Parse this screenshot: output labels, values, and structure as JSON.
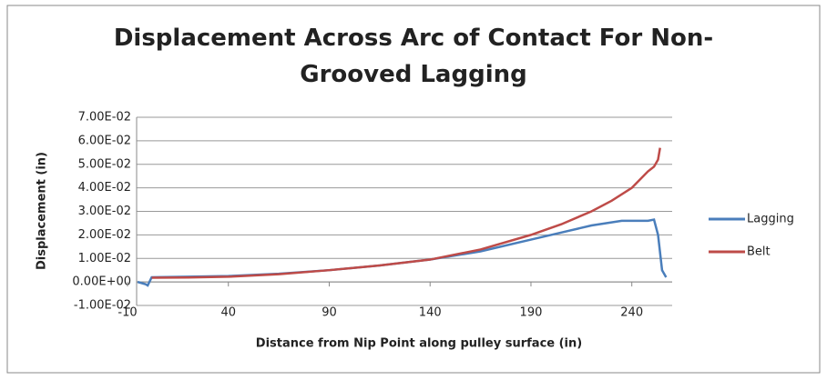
{
  "chart_data": {
    "type": "line",
    "title": "Displacement Across Arc of Contact For Non-Grooved Lagging",
    "x_label": "Distance from Nip Point along pulley surface (in)",
    "y_label": "Displacement (in)",
    "xlim": [
      -10,
      260
    ],
    "xticks": [
      -10,
      40,
      90,
      140,
      190,
      240
    ],
    "ylim": [
      -0.01,
      0.07
    ],
    "yticks": [
      {
        "value": -0.01,
        "label": "-1.00E-02"
      },
      {
        "value": 0,
        "label": "0.00E+00"
      },
      {
        "value": 0.01,
        "label": "1.00E-02"
      },
      {
        "value": 0.02,
        "label": "2.00E-02"
      },
      {
        "value": 0.03,
        "label": "3.00E-02"
      },
      {
        "value": 0.04,
        "label": "4.00E-02"
      },
      {
        "value": 0.05,
        "label": "5.00E-02"
      },
      {
        "value": 0.06,
        "label": "6.00E-02"
      },
      {
        "value": 0.07,
        "label": "7.00E-02"
      }
    ],
    "grid": true,
    "legend": "right",
    "series": [
      {
        "name": "Lagging",
        "color": "#4a7ebb",
        "x": [
          -5,
          -1,
          0,
          2,
          20,
          40,
          65,
          90,
          115,
          140,
          165,
          190,
          205,
          220,
          235,
          248,
          251,
          253,
          255,
          257
        ],
        "values": [
          0,
          -0.001,
          -0.0015,
          0.002,
          0.0022,
          0.0025,
          0.0035,
          0.005,
          0.007,
          0.0095,
          0.013,
          0.018,
          0.021,
          0.024,
          0.026,
          0.026,
          0.0265,
          0.02,
          0.005,
          0.002
        ]
      },
      {
        "name": "Belt",
        "color": "#be4b48",
        "x": [
          2,
          20,
          40,
          65,
          90,
          115,
          140,
          165,
          190,
          205,
          220,
          230,
          240,
          248,
          251,
          253,
          254
        ],
        "values": [
          0.0018,
          0.0019,
          0.0022,
          0.0033,
          0.005,
          0.007,
          0.0095,
          0.0138,
          0.02,
          0.0245,
          0.03,
          0.0345,
          0.04,
          0.047,
          0.049,
          0.052,
          0.057
        ]
      }
    ]
  }
}
